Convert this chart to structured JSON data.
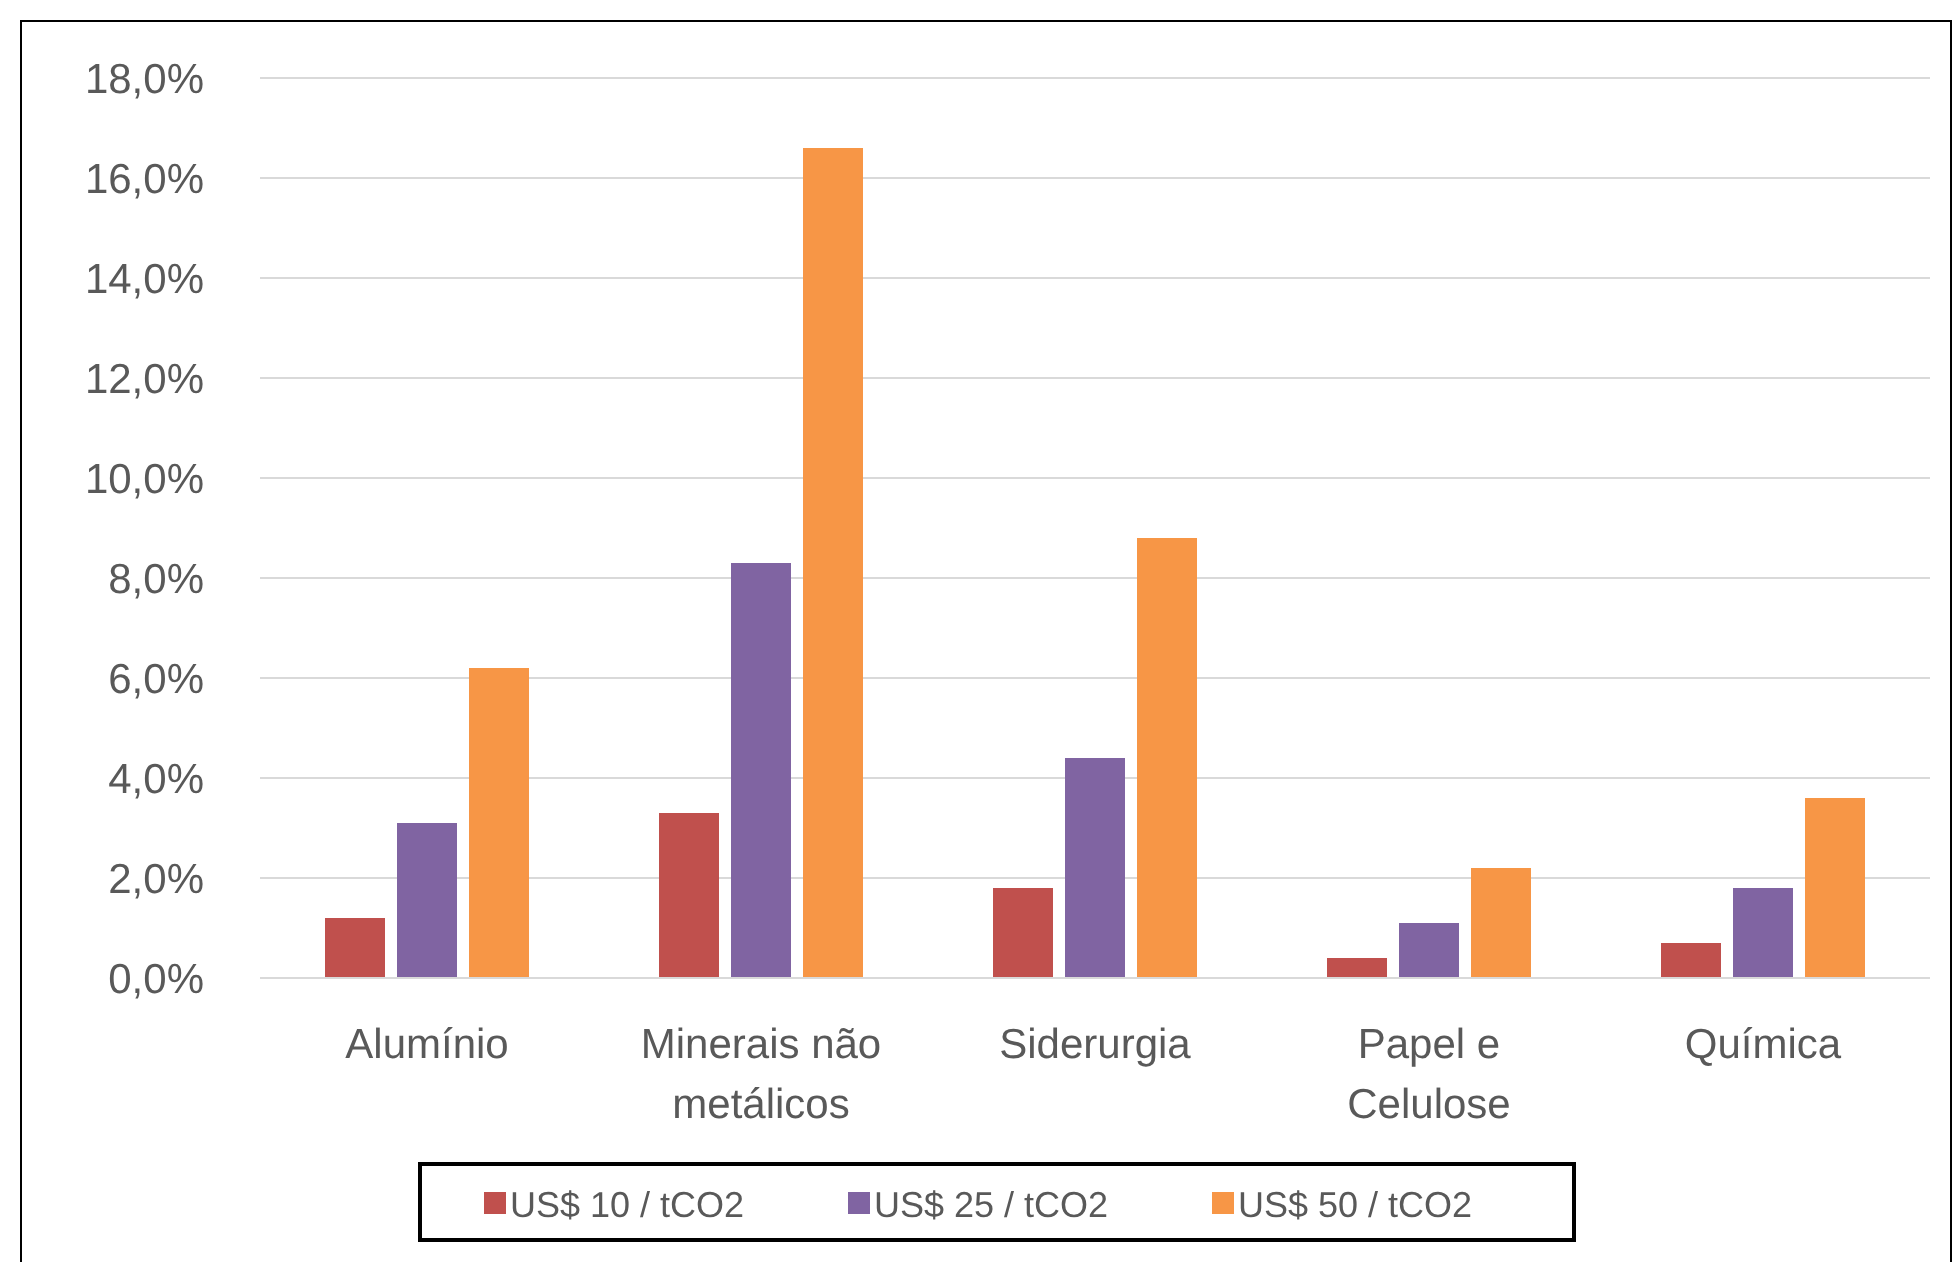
{
  "chart_data": {
    "type": "bar",
    "categories": [
      "Alumínio",
      "Minerais não metálicos",
      "Siderurgia",
      "Papel e Celulose",
      "Química"
    ],
    "series": [
      {
        "name": "US$ 10 / tCO2",
        "color": "#c0504d",
        "values": [
          1.2,
          3.3,
          1.8,
          0.4,
          0.7
        ]
      },
      {
        "name": "US$ 25 / tCO2",
        "color": "#8064a2",
        "values": [
          3.1,
          8.3,
          4.4,
          1.1,
          1.8
        ]
      },
      {
        "name": "US$ 50 / tCO2",
        "color": "#f79646",
        "values": [
          6.2,
          16.6,
          8.8,
          2.2,
          3.6
        ]
      }
    ],
    "ylim": [
      0,
      18
    ],
    "yticks": [
      {
        "value": 0,
        "label": "0,0%"
      },
      {
        "value": 2,
        "label": "2,0%"
      },
      {
        "value": 4,
        "label": "4,0%"
      },
      {
        "value": 6,
        "label": "6,0%"
      },
      {
        "value": 8,
        "label": "8,0%"
      },
      {
        "value": 10,
        "label": "10,0%"
      },
      {
        "value": 12,
        "label": "12,0%"
      },
      {
        "value": 14,
        "label": "14,0%"
      },
      {
        "value": 16,
        "label": "16,0%"
      },
      {
        "value": 18,
        "label": "18,0%"
      }
    ],
    "grid": "y",
    "legend": "bottom"
  }
}
